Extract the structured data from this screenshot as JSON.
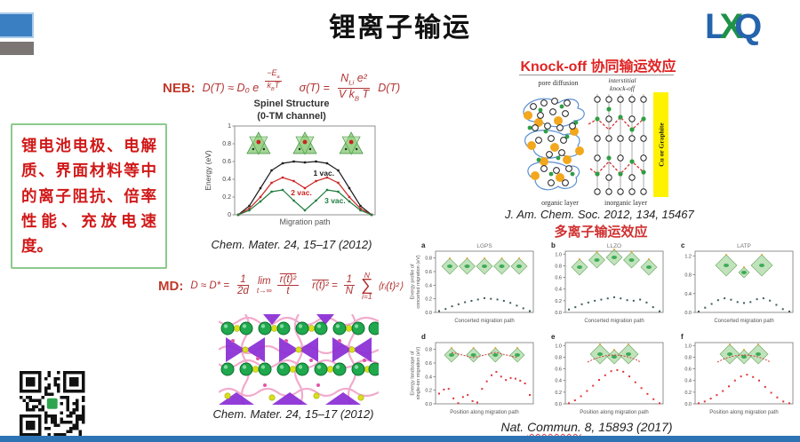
{
  "slide": {
    "title": "锂离子输运",
    "logo": {
      "l": "L",
      "x": "X",
      "q": "Q"
    }
  },
  "colors": {
    "logo_blue": "#2563ad",
    "logo_green": "#1f9148",
    "accent_red": "#c0392b",
    "bottom_bar_blue": "#2e74b5",
    "highlight_yellow": "#fef200",
    "box_border_green": "#8cc98c"
  },
  "left_box": {
    "text": "锂电池电极、电解质、界面材料等中的离子阻抗、倍率性能、充放电速度。"
  },
  "neb": {
    "label": "NEB:",
    "part1": "D(T) ≈ D₀ e",
    "exp_num_base": "−E",
    "exp_num_sub": "a",
    "exp_den_base": "k",
    "exp_den_sub": "B",
    "exp_den_rest": "T",
    "part2": "σ(T) =",
    "sig_num_base": "N",
    "sig_num_sub": "Li",
    "sig_num_rest": " e²",
    "sig_den_base": "V k",
    "sig_den_sub": "B",
    "sig_den_rest": " T",
    "part3": "D(T)"
  },
  "md": {
    "label": "MD:",
    "part1": "D ≈ D* =",
    "f1n": "1",
    "f1d": "2d",
    "lim_top": "lim",
    "lim_bot": "t→∞",
    "f2n": "r(t)²",
    "f2d": "t",
    "part2a": "r(t)²",
    "part2b": "=",
    "f3n": "1",
    "f3d": "N",
    "sum_top": "N",
    "sum_sym": "∑",
    "sum_bot": "i=1",
    "part3": "⟨rᵢ(t)²⟩"
  },
  "knockoff": {
    "title": "Knock-off 协同输运效应",
    "pore": "pore diffusion",
    "interstitial": "interstitial",
    "knock": "knock-off",
    "organic": "organic layer",
    "inorganic": "inorganic layer",
    "bar": "Cu or Graphite"
  },
  "multi_ion_title": "多离子输运效应",
  "citations": {
    "spinel": "Chem. Mater. 24, 15–17 (2012)",
    "md": "Chem. Mater. 24, 15–17 (2012)",
    "jacs": "J. Am. Chem. Soc. 2012, 134, 15467",
    "nat_pre": "Nat. ",
    "nat_ul": "Commun.",
    "nat_post": " 8,  15893  (2017)"
  },
  "chart_data": [
    {
      "id": "spinel",
      "type": "line",
      "title": "Spinel Structure",
      "subtitle": "(0-TM channel)",
      "ylabel": "Energy (eV)",
      "xlabel": "Migration path",
      "ylim": [
        0,
        1
      ],
      "ytick_vals": [
        0,
        0.2,
        0.4,
        0.6,
        0.8,
        1
      ],
      "ytick_labels": [
        "0",
        "0.2",
        "0.4",
        "0.6",
        "0.8",
        "1"
      ],
      "series": [
        {
          "name": "1 vac.",
          "color": "#1a1a1a",
          "label_at": [
            0.56,
            0.44
          ],
          "y": [
            0,
            0.1,
            0.3,
            0.5,
            0.58,
            0.6,
            0.59,
            0.6,
            0.58,
            0.5,
            0.3,
            0.1,
            0
          ]
        },
        {
          "name": "2 vac.",
          "color": "#cc2222",
          "label_at": [
            0.4,
            0.22
          ],
          "y": [
            0,
            0.07,
            0.2,
            0.36,
            0.42,
            0.38,
            0.3,
            0.38,
            0.42,
            0.36,
            0.2,
            0.07,
            0
          ]
        },
        {
          "name": "3 vac.",
          "color": "#1e7d3e",
          "label_at": [
            0.64,
            0.13
          ],
          "y": [
            0,
            0.05,
            0.15,
            0.26,
            0.28,
            0.16,
            0.05,
            0.16,
            0.28,
            0.26,
            0.15,
            0.05,
            0
          ]
        }
      ]
    },
    {
      "id": "lgps",
      "type": "line",
      "panel": "a",
      "title": "LGPS",
      "xlabel": "Concerted migration path",
      "ylabel_lines": [
        "Energy profile of",
        "concerted migration (eV)"
      ],
      "ylim": [
        0,
        0.9
      ],
      "ytick_vals": [
        0,
        0.2,
        0.4,
        0.6,
        0.8
      ],
      "ytick_labels": [
        "0.0",
        "0.2",
        "0.4",
        "0.6",
        "0.8"
      ],
      "inset": "row",
      "series": [
        {
          "color": "#3d5c5c",
          "y": [
            0.02,
            0.05,
            0.09,
            0.12,
            0.15,
            0.17,
            0.19,
            0.21,
            0.2,
            0.19,
            0.17,
            0.14,
            0.1,
            0.06,
            0.02
          ]
        }
      ]
    },
    {
      "id": "llzo",
      "type": "line",
      "panel": "b",
      "title": "LLZO",
      "xlabel": "Concerted migration path",
      "ylim": [
        0,
        1.05
      ],
      "ytick_vals": [
        0,
        0.2,
        0.4,
        0.6,
        0.8,
        1.0
      ],
      "ytick_labels": [
        "0.0",
        "0.2",
        "0.4",
        "0.6",
        "0.8",
        "1.0"
      ],
      "inset": "arch",
      "series": [
        {
          "color": "#3d5c5c",
          "y": [
            0.05,
            0.09,
            0.14,
            0.17,
            0.2,
            0.22,
            0.24,
            0.26,
            0.24,
            0.21,
            0.2,
            0.22,
            0.17,
            0.09,
            0.02
          ]
        }
      ]
    },
    {
      "id": "latp",
      "type": "line",
      "panel": "c",
      "title": "LATP",
      "xlabel": "Concerted migration path",
      "ylim": [
        0,
        1.3
      ],
      "ytick_vals": [
        0,
        0.4,
        0.8,
        1.2
      ],
      "ytick_labels": [
        "0.0",
        "0.4",
        "0.8",
        "1.2"
      ],
      "inset": "pair",
      "series": [
        {
          "color": "#3d5c5c",
          "y": [
            0.02,
            0.1,
            0.18,
            0.26,
            0.3,
            0.27,
            0.22,
            0.2,
            0.22,
            0.28,
            0.3,
            0.25,
            0.16,
            0.07,
            0.02
          ]
        }
      ]
    },
    {
      "id": "d",
      "type": "line",
      "panel": "d",
      "xlabel": "Position along migration path",
      "ylabel_lines": [
        "Energy landscape of",
        "single-ion migration (eV)"
      ],
      "ylim": [
        0,
        0.9
      ],
      "ytick_vals": [
        0,
        0.2,
        0.4,
        0.6,
        0.8
      ],
      "ytick_labels": [
        "0.0",
        "0.2",
        "0.4",
        "0.6",
        "0.8"
      ],
      "inset": "row-red",
      "series": [
        {
          "color": "#e03535",
          "y": [
            0.15,
            0.21,
            0.22,
            0.08,
            0.01,
            0.1,
            0.13,
            0.04,
            0.02,
            0.22,
            0.33,
            0.42,
            0.47,
            0.4,
            0.35,
            0.38,
            0.37,
            0.34,
            0.3,
            0.13
          ]
        }
      ]
    },
    {
      "id": "e",
      "type": "line",
      "panel": "e",
      "xlabel": "Position along migration path",
      "ylim": [
        0,
        1.05
      ],
      "ytick_vals": [
        0,
        0.2,
        0.4,
        0.6,
        0.8,
        1.0
      ],
      "ytick_labels": [
        "0.0",
        "0.2",
        "0.4",
        "0.6",
        "0.8",
        "1.0"
      ],
      "inset": "pair-red",
      "series": [
        {
          "color": "#e03535",
          "y": [
            0.01,
            0.06,
            0.13,
            0.22,
            0.31,
            0.41,
            0.49,
            0.56,
            0.58,
            0.55,
            0.47,
            0.37,
            0.27,
            0.17,
            0.08,
            0.01
          ]
        }
      ]
    },
    {
      "id": "f",
      "type": "line",
      "panel": "f",
      "xlabel": "Position along migration path",
      "ylim": [
        0,
        1.05
      ],
      "ytick_vals": [
        0,
        0.2,
        0.4,
        0.6,
        0.8,
        1.0
      ],
      "ytick_labels": [
        "0.0",
        "0.2",
        "0.4",
        "0.6",
        "0.8",
        "1.0"
      ],
      "inset": "pair-red",
      "series": [
        {
          "color": "#e03535",
          "y": [
            0.01,
            0.04,
            0.09,
            0.15,
            0.22,
            0.3,
            0.4,
            0.47,
            0.5,
            0.46,
            0.4,
            0.29,
            0.19,
            0.11,
            0.04,
            0.01
          ]
        }
      ]
    }
  ]
}
